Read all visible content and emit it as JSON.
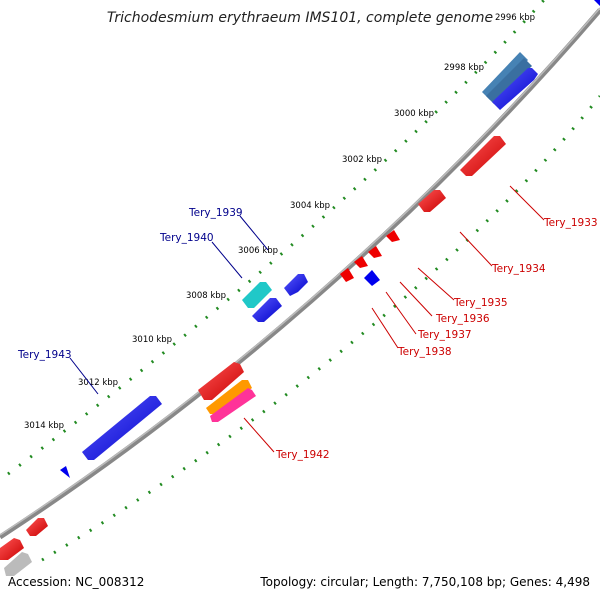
{
  "title": "Trichodesmium erythraeum IMS101, complete genome",
  "footer": {
    "accession": "Accession: NC_008312",
    "summary": "Topology: circular; Length: 7,750,108 bp; Genes: 4,498"
  },
  "ticks": [
    {
      "label": "2996 kbp"
    },
    {
      "label": "2998 kbp"
    },
    {
      "label": "3000 kbp"
    },
    {
      "label": "3002 kbp"
    },
    {
      "label": "3004 kbp"
    },
    {
      "label": "3006 kbp"
    },
    {
      "label": "3008 kbp"
    },
    {
      "label": "3010 kbp"
    },
    {
      "label": "3012 kbp"
    },
    {
      "label": "3014 kbp"
    }
  ],
  "gene_labels": [
    {
      "name": "Tery_1933",
      "color": "#cc0000"
    },
    {
      "name": "Tery_1934",
      "color": "#cc0000"
    },
    {
      "name": "Tery_1935",
      "color": "#cc0000"
    },
    {
      "name": "Tery_1936",
      "color": "#cc0000"
    },
    {
      "name": "Tery_1937",
      "color": "#cc0000"
    },
    {
      "name": "Tery_1938",
      "color": "#cc0000"
    },
    {
      "name": "Tery_1939",
      "color": "#00008b"
    },
    {
      "name": "Tery_1940",
      "color": "#00008b"
    },
    {
      "name": "Tery_1942",
      "color": "#cc0000"
    },
    {
      "name": "Tery_1943",
      "color": "#00008b"
    }
  ],
  "colors": {
    "forward_strand": "#0000ee",
    "reverse_strand": "#ee0000",
    "backbone": "#888888",
    "tick_dots": "#228b22",
    "highlight_cyan": "#20c8c8",
    "highlight_orange": "#ff9900",
    "highlight_pink": "#ff3399",
    "highlight_steelblue": "#4682b4",
    "pseudo_grey": "#bbbbbb"
  }
}
